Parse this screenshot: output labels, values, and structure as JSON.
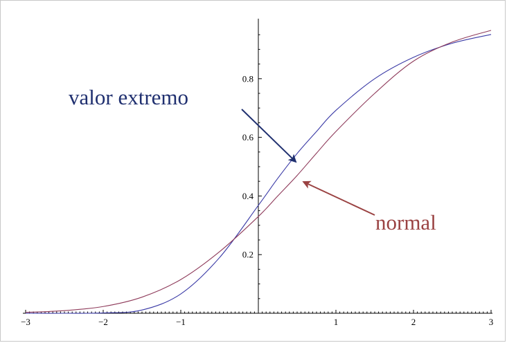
{
  "chart_data": {
    "type": "line",
    "title": "",
    "xlabel": "",
    "ylabel": "",
    "xlim": [
      -3,
      3
    ],
    "ylim": [
      0,
      1
    ],
    "grid": false,
    "x_ticks": [
      {
        "value": -3,
        "label": "−3"
      },
      {
        "value": -2,
        "label": "−2"
      },
      {
        "value": -1,
        "label": "−1"
      },
      {
        "value": 1,
        "label": "1"
      },
      {
        "value": 2,
        "label": "2"
      },
      {
        "value": 3,
        "label": "3"
      }
    ],
    "y_ticks": [
      {
        "value": 0.2,
        "label": "0.2"
      },
      {
        "value": 0.4,
        "label": "0.4"
      },
      {
        "value": 0.6,
        "label": "0.6"
      },
      {
        "value": 0.8,
        "label": "0.8"
      }
    ],
    "series": [
      {
        "key": "extreme",
        "color": "#3a3aa6",
        "x": [
          -3.0,
          -2.5,
          -2.0,
          -1.5,
          -1.0,
          -0.5,
          0.0,
          0.25,
          0.5,
          0.75,
          1.0,
          1.5,
          2.0,
          2.5,
          3.0
        ],
        "y": [
          0.0,
          0.0,
          0.001,
          0.011,
          0.066,
          0.19,
          0.368,
          0.46,
          0.545,
          0.62,
          0.692,
          0.8,
          0.873,
          0.921,
          0.951
        ]
      },
      {
        "key": "normal",
        "color": "#8e3a5a",
        "x": [
          -3.0,
          -2.5,
          -2.0,
          -1.5,
          -1.0,
          -0.5,
          0.0,
          0.25,
          0.5,
          0.75,
          1.0,
          1.5,
          2.0,
          2.5,
          3.0
        ],
        "y": [
          0.003,
          0.009,
          0.023,
          0.055,
          0.115,
          0.21,
          0.33,
          0.4,
          0.47,
          0.546,
          0.62,
          0.75,
          0.86,
          0.925,
          0.965
        ]
      }
    ],
    "annotations": [
      {
        "key": "extreme",
        "text": "valor extremo",
        "color": "#1f2f6f",
        "point_x": 0.5,
        "point_y": 0.545
      },
      {
        "key": "normal",
        "text": "normal",
        "color": "#9a4242",
        "point_x": 0.6,
        "point_y": 0.5
      }
    ]
  }
}
